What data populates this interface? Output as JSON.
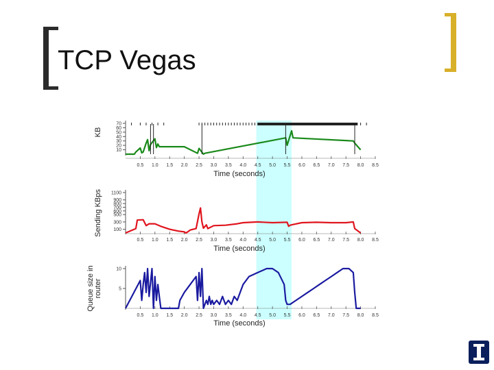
{
  "title": "TCP Vegas",
  "chart_data": [
    {
      "type": "line",
      "ylabel": "KB",
      "xlabel": "Time (seconds)",
      "xlim": [
        0,
        8.5
      ],
      "ylim": [
        0,
        70
      ],
      "x_ticks": [
        "0.5",
        "1.0",
        "1.5",
        "2.0",
        "2.5",
        "3.0",
        "3.5",
        "4.0",
        "4.5",
        "5.0",
        "5.5",
        "6.0",
        "6.5",
        "7.0",
        "7.5",
        "8.0",
        "8.5"
      ],
      "y_ticks": [
        "70",
        "60",
        "50",
        "40",
        "30",
        "20",
        "10"
      ],
      "line_color": "#1a8a1a",
      "series": [
        {
          "x": [
            0.0,
            0.3,
            0.35,
            0.5,
            0.55,
            0.6,
            0.7,
            0.75,
            0.8,
            0.85,
            1.0,
            1.05,
            1.1,
            1.15,
            1.3,
            2.0,
            2.45,
            2.5,
            2.65,
            2.7,
            5.45,
            5.5,
            5.65,
            5.7,
            7.75,
            7.8,
            8.0
          ],
          "y": [
            0,
            0,
            5,
            14,
            3,
            5,
            25,
            33,
            8,
            22,
            35,
            15,
            23,
            17,
            17,
            17,
            2,
            13,
            0,
            2,
            37,
            20,
            53,
            37,
            30,
            25,
            10
          ]
        }
      ]
    },
    {
      "type": "line",
      "ylabel": "Sending KBps",
      "xlabel": "Time (seconds)",
      "xlim": [
        0,
        8.5
      ],
      "ylim": [
        0,
        1100
      ],
      "x_ticks": [
        "0.5",
        "1.0",
        "1.5",
        "2.0",
        "2.5",
        "3.0",
        "3.5",
        "4.0",
        "4.5",
        "5.0",
        "5.5",
        "6.0",
        "6.5",
        "7.0",
        "7.5",
        "8.0",
        "8.5"
      ],
      "y_ticks": [
        "1100",
        "900",
        "800",
        "700",
        "600",
        "500",
        "300",
        "100"
      ],
      "line_color": "#e0141d",
      "series": [
        {
          "x": [
            0.0,
            0.35,
            0.4,
            0.6,
            0.7,
            0.8,
            1.0,
            1.2,
            1.5,
            1.8,
            2.0,
            2.05,
            2.1,
            2.2,
            2.4,
            2.5,
            2.55,
            2.6,
            2.65,
            2.75,
            2.8,
            3.0,
            3.4,
            3.8,
            4.0,
            4.5,
            5.0,
            5.5,
            5.55,
            5.6,
            5.7,
            6.0,
            6.5,
            7.0,
            7.5,
            7.75,
            7.8,
            8.0
          ],
          "y": [
            0,
            120,
            350,
            360,
            200,
            250,
            250,
            180,
            100,
            50,
            30,
            0,
            20,
            80,
            120,
            520,
            680,
            300,
            130,
            220,
            120,
            200,
            210,
            250,
            280,
            300,
            280,
            290,
            180,
            210,
            230,
            280,
            290,
            280,
            280,
            300,
            120,
            0
          ]
        }
      ]
    },
    {
      "type": "line",
      "ylabel": "Queue size in router",
      "xlabel": "Time (seconds)",
      "xlim": [
        0,
        8.5
      ],
      "ylim": [
        0,
        10
      ],
      "x_ticks": [
        "0.5",
        "1.0",
        "1.5",
        "2.0",
        "2.5",
        "3.0",
        "3.5",
        "4.0",
        "4.5",
        "5.0",
        "5.5",
        "6.0",
        "6.5",
        "7.0",
        "7.5",
        "8.0",
        "8.5"
      ],
      "y_ticks": [
        "10",
        "5"
      ],
      "line_color": "#1a1aa0",
      "series": [
        {
          "x": [
            0.0,
            0.5,
            0.55,
            0.6,
            0.65,
            0.7,
            0.75,
            0.8,
            0.9,
            0.95,
            1.0,
            1.05,
            1.1,
            1.15,
            1.2,
            1.8,
            1.85,
            2.0,
            2.2,
            2.4,
            2.45,
            2.5,
            2.55,
            2.6,
            2.65,
            2.7,
            2.75,
            2.8,
            2.85,
            2.9,
            2.95,
            3.0,
            3.1,
            3.2,
            3.3,
            3.4,
            3.5,
            3.6,
            3.7,
            3.8,
            3.9,
            4.0,
            4.2,
            4.5,
            4.8,
            5.0,
            5.2,
            5.4,
            5.45,
            5.5,
            5.6,
            5.8,
            6.0,
            6.2,
            6.4,
            6.6,
            6.8,
            7.0,
            7.2,
            7.4,
            7.6,
            7.75,
            7.8,
            7.85,
            8.0
          ],
          "y": [
            0,
            7,
            2,
            6,
            9,
            4,
            10,
            3,
            10,
            0,
            8,
            2,
            6,
            3,
            0,
            0,
            2,
            4,
            6,
            8,
            2,
            9,
            3,
            10,
            0,
            1,
            2,
            1,
            3,
            1,
            2,
            1,
            2,
            1,
            3,
            1,
            2,
            1,
            3,
            2,
            4,
            6,
            8,
            9,
            10,
            10,
            9,
            6,
            2,
            1,
            1,
            2,
            3,
            4,
            5,
            6,
            7,
            8,
            9,
            10,
            10,
            9,
            4,
            0,
            0
          ]
        }
      ]
    }
  ],
  "highlight_band": {
    "x_start": 4.45,
    "x_end": 5.65,
    "color": "#ccffff"
  },
  "logo_letter": "I"
}
